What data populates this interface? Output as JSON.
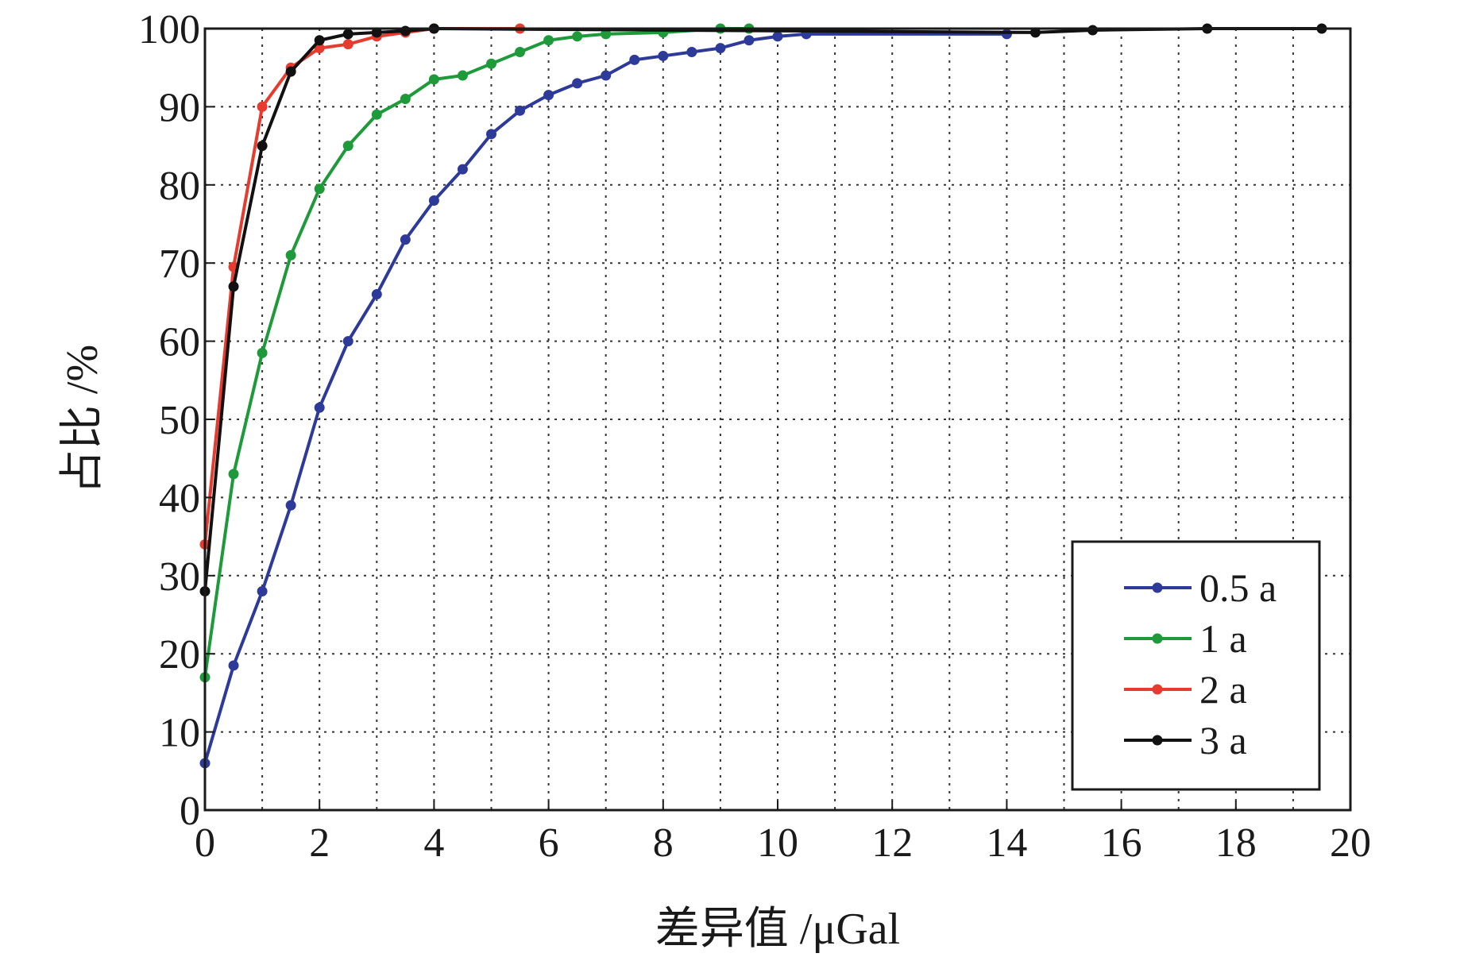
{
  "chart_data": {
    "type": "line",
    "xlabel": "差异值 /μGal",
    "ylabel": "占比 /%",
    "xlim": [
      0,
      20
    ],
    "ylim": [
      0,
      100
    ],
    "xticks": [
      0,
      2,
      4,
      6,
      8,
      10,
      12,
      14,
      16,
      18,
      20
    ],
    "yticks": [
      0,
      10,
      20,
      30,
      40,
      50,
      60,
      70,
      80,
      90,
      100
    ],
    "grid": true,
    "legend_position": "lower-right",
    "series": [
      {
        "name": "0.5 a",
        "color": "#2e3a99",
        "x": [
          0,
          0.5,
          1,
          1.5,
          2,
          2.5,
          3,
          3.5,
          4,
          4.5,
          5,
          5.5,
          6,
          6.5,
          7,
          7.5,
          8,
          8.5,
          9,
          9.5,
          10,
          10.5,
          14
        ],
        "y": [
          6,
          18.5,
          28,
          39,
          51.5,
          60,
          66,
          73,
          78,
          82,
          86.5,
          89.5,
          91.5,
          93,
          94,
          96,
          96.5,
          97,
          97.5,
          98.5,
          99,
          99.3,
          99.3
        ]
      },
      {
        "name": "1 a",
        "color": "#1e9a3a",
        "x": [
          0,
          0.5,
          1,
          1.5,
          2,
          2.5,
          3,
          3.5,
          4,
          4.5,
          5,
          5.5,
          6,
          6.5,
          7,
          8,
          9,
          9.5
        ],
        "y": [
          17,
          43,
          58.5,
          71,
          79.5,
          85,
          89,
          91,
          93.5,
          94,
          95.5,
          97,
          98.5,
          99,
          99.3,
          99.5,
          100,
          100
        ]
      },
      {
        "name": "2 a",
        "color": "#e63b2e",
        "x": [
          0,
          0.5,
          1,
          1.5,
          2,
          2.5,
          3,
          3.5,
          4,
          5.5
        ],
        "y": [
          34,
          69.5,
          90,
          95,
          97.5,
          98,
          99,
          99.5,
          100,
          100
        ]
      },
      {
        "name": "3 a",
        "color": "#111111",
        "x": [
          0,
          0.5,
          1,
          1.5,
          2,
          2.5,
          3,
          3.5,
          4,
          14.5,
          15.5,
          17.5,
          19.5
        ],
        "y": [
          28,
          67,
          85,
          94.5,
          98.5,
          99.3,
          99.5,
          99.7,
          100,
          99.5,
          99.8,
          100,
          100
        ]
      }
    ]
  }
}
